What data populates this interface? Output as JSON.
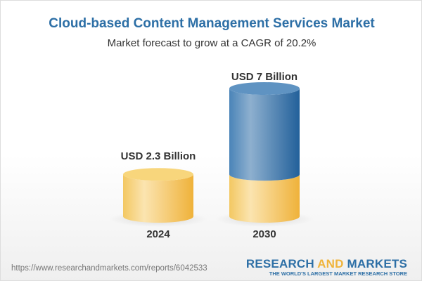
{
  "chart_data": {
    "type": "bar",
    "style": "3d-cylinder",
    "title": "Cloud-based Content Management Services Market",
    "subtitle": "Market forecast to grow at a CAGR of 20.2%",
    "categories": [
      "2024",
      "2030"
    ],
    "values": [
      2.3,
      7
    ],
    "value_labels": [
      "USD 2.3 Billion",
      "USD 7 Billion"
    ],
    "unit": "USD Billion",
    "colors": {
      "base": "#f2c45a",
      "growth": "#3f7bb0"
    }
  },
  "footer": {
    "url": "https://www.researchandmarkets.com/reports/6042533",
    "logo_part1": "RESEARCH ",
    "logo_part2": "AND",
    "logo_part3": " MARKETS",
    "tagline": "THE WORLD'S LARGEST MARKET RESEARCH STORE"
  }
}
